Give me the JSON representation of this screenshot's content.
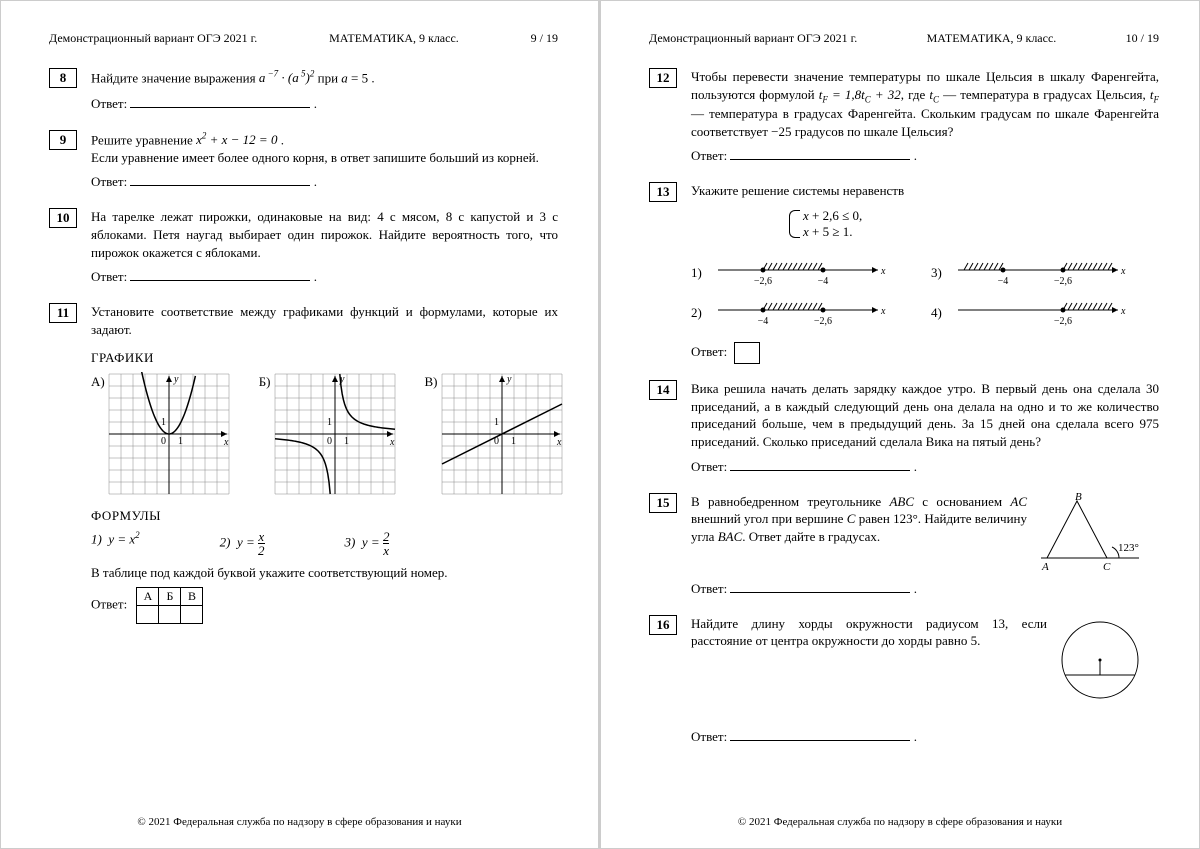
{
  "header": {
    "left": "Демонстрационный вариант ОГЭ 2021 г.",
    "mid": "МАТЕМАТИКА, 9 класс.",
    "page_left": "9 / 19",
    "page_right": "10 / 19"
  },
  "footer": "© 2021 Федеральная служба по надзору в сфере образования и науки",
  "labels": {
    "answer": "Ответ:",
    "graphs": "ГРАФИКИ",
    "formulas": "ФОРМУЛЫ",
    "table_note": "В таблице под каждой буквой укажите соответствующий номер.",
    "cols": [
      "А",
      "Б",
      "В"
    ]
  },
  "graphs": {
    "labels": [
      "А)",
      "Б)",
      "В)"
    ],
    "grid": {
      "cells": 10,
      "size": 120,
      "axis_color": "#000",
      "grid_color": "#888"
    },
    "curves": {
      "A": {
        "type": "parabola"
      },
      "B": {
        "type": "reciprocal"
      },
      "C": {
        "type": "line_half"
      }
    }
  },
  "tasks": {
    "8": {
      "num": "8",
      "text_pre": "Найдите значение выражения ",
      "expr_html": "<span class='formula'>a<span class='sup'>&nbsp;&minus;7</span> &middot; (a<span class='sup'>&nbsp;5</span>)<span class='sup'>2</span></span>",
      "text_post": " при <span class='formula'>a</span> = 5 ."
    },
    "9": {
      "num": "9",
      "line1_pre": "Решите уравнение ",
      "expr_html": "<span class='formula'>x<span class='sup'>2</span> + x &minus; 12 = 0</span> .",
      "line2": "Если уравнение имеет более одного корня, в ответ запишите больший из корней."
    },
    "10": {
      "num": "10",
      "text": "На тарелке лежат пирожки, одинаковые на вид: 4 с мясом, 8 с капустой и 3 с яблоками. Петя наугад выбирает один пирожок. Найдите вероятность того, что пирожок окажется с яблоками."
    },
    "11": {
      "num": "11",
      "text": "Установите соответствие между графиками функций и формулами, которые их задают."
    },
    "f1": "1)&nbsp;&nbsp;<span class='formula'>y = x</span><span class='sup formula'>2</span>",
    "f2": "2)&nbsp;&nbsp;<span class='formula'>y = </span><span style='display:inline-block;vertical-align:middle;text-align:center;line-height:1.0'><span class='formula'>x</span><br><span style='display:block;border-top:1px solid #000'>2</span></span>",
    "f3": "3)&nbsp;&nbsp;<span class='formula'>y = </span><span style='display:inline-block;vertical-align:middle;text-align:center;line-height:1.0'>2<br><span style='display:block;border-top:1px solid #000' class='formula'>x</span></span>",
    "12": {
      "num": "12",
      "text": "Чтобы перевести значение температуры по шкале Цельсия в шкалу Фаренгейта, пользуются формулой <span class='formula'>t<span class='sub'>F</span> = 1,8t<span class='sub'>C</span> + 32</span>, где <span class='formula'>t<span class='sub'>C</span></span> — температура в градусах Цельсия, <span class='formula'>t<span class='sub'>F</span></span> — температура в градусах Фаренгейта. Скольким градусам по шкале Фаренгейта соответствует &minus;25 градусов по шкале Цельсия?"
    },
    "13": {
      "num": "13",
      "text": "Укажите решение системы неравенств",
      "sys1": "<span class='formula'>x</span> + 2,6 &le; 0,",
      "sys2": "<span class='formula'>x</span> + 5 &ge; 1."
    },
    "nl": {
      "1": {
        "num": "1)",
        "a": "−2,6",
        "b": "−4",
        "type": "between"
      },
      "2": {
        "num": "2)",
        "a": "−4",
        "b": "−2,6",
        "type": "between"
      },
      "3": {
        "num": "3)",
        "a": "−4",
        "b": "−2,6",
        "type": "outside"
      },
      "4": {
        "num": "4)",
        "a": "",
        "b": "−2,6",
        "type": "right"
      }
    },
    "14": {
      "num": "14",
      "text": "Вика решила начать делать зарядку каждое утро. В первый день она сделала 30 приседаний, а в каждый следующий день она делала на одно и то же количество приседаний больше, чем в предыдущий день. За 15 дней она сделала всего 975 приседаний. Сколько приседаний сделала Вика на пятый день?"
    },
    "15": {
      "num": "15",
      "text": "В равнобедренном треугольнике <span class='formula'>ABC</span> с основанием <span class='formula'>AC</span> внешний угол при вершине <span class='formula'>C</span> равен 123°. Найдите величину угла <span class='formula'>BAC</span>. Ответ дайте в градусах.",
      "fig": {
        "A": "A",
        "B": "B",
        "C": "C",
        "angle": "123°"
      }
    },
    "16": {
      "num": "16",
      "text": "Найдите длину хорды окружности радиусом 13, если расстояние от центра окружности до хорды равно 5."
    }
  }
}
